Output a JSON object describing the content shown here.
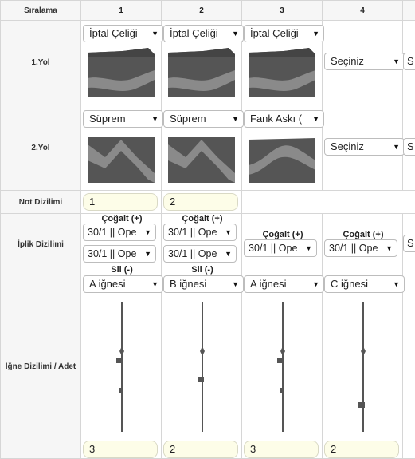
{
  "table": {
    "header": {
      "label": "Sıralama",
      "cols": [
        "1",
        "2",
        "3",
        "4"
      ]
    },
    "rows": {
      "yol1": {
        "label": "1.Yol",
        "cells": [
          "İptal Çeliği",
          "İptal Çeliği",
          "İptal Çeliği",
          "Seçiniz"
        ],
        "partial": "S"
      },
      "yol2": {
        "label": "2.Yol",
        "cells": [
          "Süprem",
          "Süprem",
          "Fank Askı (",
          "Seçiniz"
        ],
        "partial": "S"
      },
      "not": {
        "label": "Not Dizilimi",
        "values": [
          "1",
          "2"
        ]
      },
      "iplik": {
        "label": "İplik Dizilimi",
        "cogalt": "Çoğalt (+)",
        "sil": "Sil (-)",
        "cells": [
          [
            "30/1 || Ope",
            "30/1 || Ope"
          ],
          [
            "30/1 || Ope",
            "30/1 || Ope"
          ],
          [
            "30/1 || Ope"
          ],
          [
            "30/1 || Ope"
          ]
        ],
        "partial": "S"
      },
      "igne": {
        "label": "İğne Dizilimi / Adet",
        "needles": [
          "A iğnesi",
          "B iğnesi",
          "A iğnesi",
          "C iğnesi"
        ],
        "counts": [
          "3",
          "2",
          "3",
          "2"
        ]
      }
    }
  },
  "colors": {
    "accent": "#5e5e5e",
    "input_bg": "#fdfde8",
    "header_bg": "#f6f6f6"
  }
}
